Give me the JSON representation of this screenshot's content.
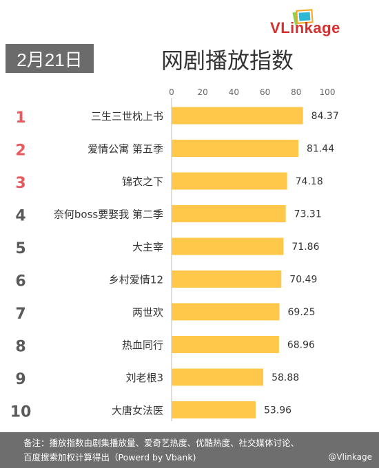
{
  "header": {
    "date": "2月21日",
    "title": "网剧播放指数",
    "logo_v": "V",
    "logo_rest": "Linkage"
  },
  "chart_data": {
    "type": "bar",
    "orientation": "horizontal",
    "title": "网剧播放指数",
    "xlim": [
      0,
      100
    ],
    "ticks": [
      0,
      20,
      40,
      60,
      80,
      100
    ],
    "ranks": [
      "1",
      "2",
      "3",
      "4",
      "5",
      "6",
      "7",
      "8",
      "9",
      "10"
    ],
    "categories": [
      "三生三世枕上书",
      "爱情公寓 第五季",
      "锦衣之下",
      "奈何boss要娶我 第二季",
      "大主宰",
      "乡村爱情12",
      "两世欢",
      "热血同行",
      "刘老根3",
      "大唐女法医"
    ],
    "values": [
      84.37,
      81.44,
      74.18,
      73.31,
      71.86,
      70.49,
      69.25,
      68.96,
      58.88,
      53.96
    ],
    "value_labels": [
      "84.37",
      "81.44",
      "74.18",
      "73.31",
      "71.86",
      "70.49",
      "69.25",
      "68.96",
      "58.88",
      "53.96"
    ],
    "bar_color": "#ffc84a",
    "top_rank_color": "#e85a5f",
    "rank_color": "#5a5a5a"
  },
  "footer": {
    "note_line1": "备注：播放指数由剧集播放量、爱奇艺热度、优酷热度、社交媒体讨论、",
    "note_line2": "百度搜索加权计算得出（Powerd by Vbank)",
    "watermark": "@Vlinkage"
  }
}
